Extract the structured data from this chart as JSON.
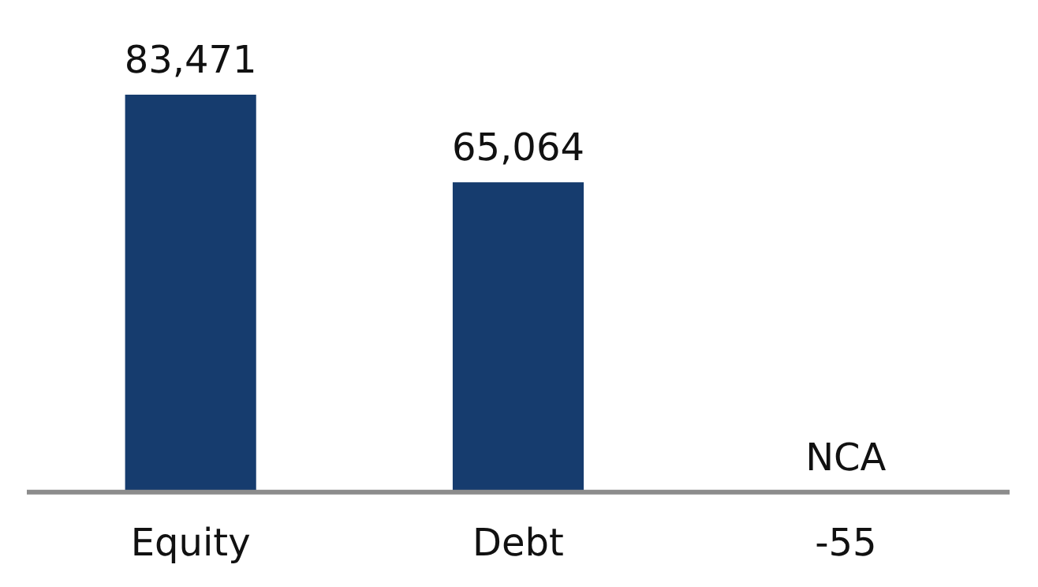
{
  "chart_data": {
    "type": "bar",
    "categories": [
      "Equity",
      "Debt",
      "NCA"
    ],
    "values": [
      83471,
      65064,
      -55
    ],
    "color": "#163c6e",
    "value_labels": [
      "83,471",
      "65,064",
      "-55"
    ]
  }
}
